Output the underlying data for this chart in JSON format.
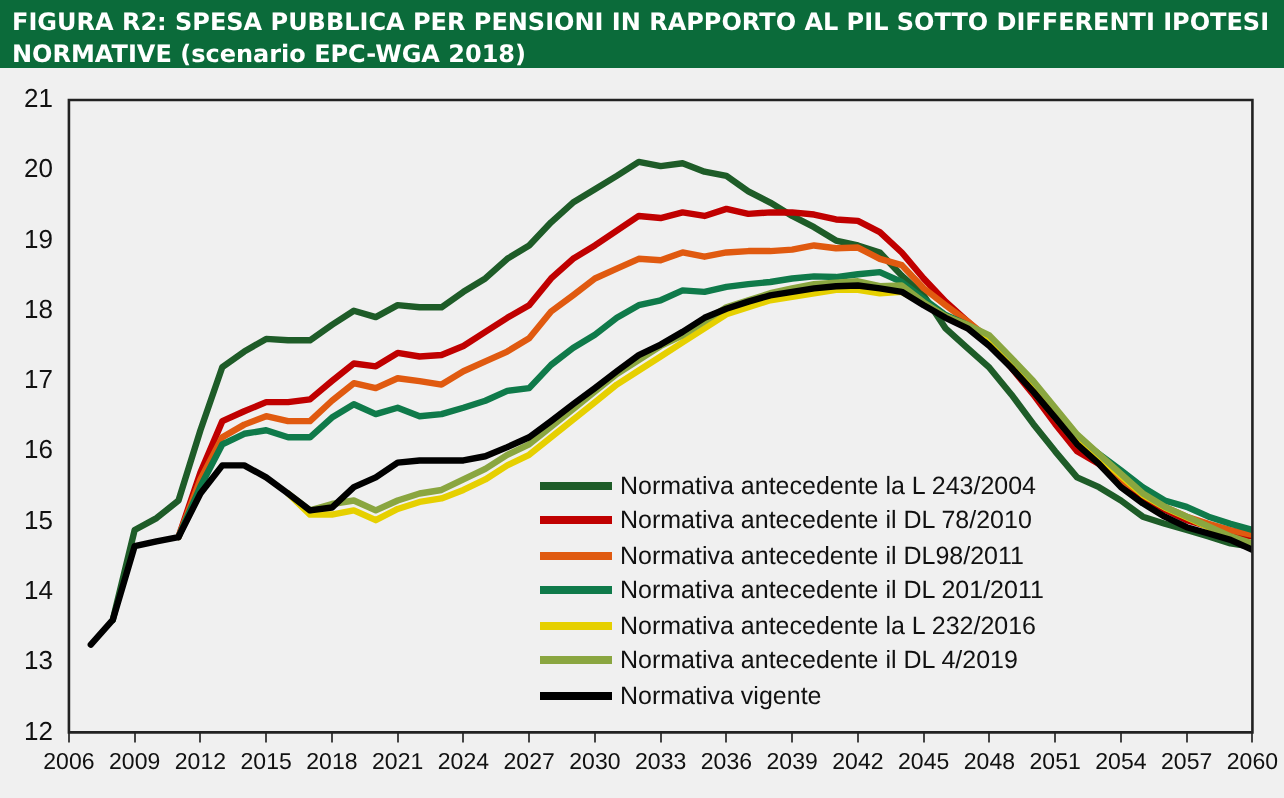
{
  "chart_data": {
    "type": "line",
    "title": "FIGURA R2: SPESA PUBBLICA PER PENSIONI IN RAPPORTO AL PIL SOTTO DIFFERENTI IPOTESI NORMATIVE (scenario EPC-WGA 2018)",
    "x": [
      2007,
      2008,
      2009,
      2010,
      2011,
      2012,
      2013,
      2014,
      2015,
      2016,
      2017,
      2018,
      2019,
      2020,
      2021,
      2022,
      2023,
      2024,
      2025,
      2026,
      2027,
      2028,
      2029,
      2030,
      2031,
      2032,
      2033,
      2034,
      2035,
      2036,
      2037,
      2038,
      2039,
      2040,
      2041,
      2042,
      2043,
      2044,
      2045,
      2046,
      2047,
      2048,
      2049,
      2050,
      2051,
      2052,
      2053,
      2054,
      2055,
      2056,
      2057,
      2058,
      2059,
      2060
    ],
    "series": [
      {
        "name": "Normativa antecedente la L 243/2004",
        "color": "#1e5c28",
        "values": [
          null,
          13.6,
          14.88,
          15.05,
          15.3,
          16.3,
          17.2,
          17.42,
          17.6,
          17.58,
          17.58,
          17.8,
          18.0,
          17.91,
          18.08,
          18.05,
          18.05,
          18.27,
          18.46,
          18.74,
          18.93,
          19.26,
          19.54,
          19.73,
          19.92,
          20.12,
          20.06,
          20.1,
          19.98,
          19.92,
          19.7,
          19.54,
          19.35,
          19.19,
          19.0,
          18.93,
          18.83,
          18.5,
          18.22,
          17.75,
          17.47,
          17.19,
          16.81,
          16.39,
          16.0,
          15.63,
          15.49,
          15.3,
          15.07,
          14.97,
          14.88,
          14.79,
          14.69,
          14.64
        ]
      },
      {
        "name": "Normativa antecedente il DL 78/2010",
        "color": "#c00000",
        "values": [
          null,
          null,
          null,
          null,
          14.78,
          15.7,
          16.43,
          16.57,
          16.7,
          16.7,
          16.74,
          17.0,
          17.25,
          17.21,
          17.4,
          17.35,
          17.37,
          17.5,
          17.7,
          17.9,
          18.08,
          18.46,
          18.74,
          18.93,
          19.14,
          19.35,
          19.32,
          19.4,
          19.35,
          19.45,
          19.38,
          19.4,
          19.4,
          19.37,
          19.3,
          19.28,
          19.12,
          18.83,
          18.46,
          18.13,
          17.85,
          17.56,
          17.19,
          16.81,
          16.39,
          16.0,
          15.82,
          15.58,
          15.35,
          15.17,
          15.02,
          14.93,
          14.83,
          14.79
        ]
      },
      {
        "name": "Normativa antecedente il DL98/2011",
        "color": "#e05a10",
        "values": [
          null,
          null,
          null,
          null,
          14.78,
          15.6,
          16.2,
          16.38,
          16.5,
          16.43,
          16.43,
          16.72,
          16.97,
          16.9,
          17.04,
          17.0,
          16.95,
          17.14,
          17.28,
          17.42,
          17.61,
          17.99,
          18.22,
          18.46,
          18.6,
          18.74,
          18.72,
          18.83,
          18.77,
          18.83,
          18.85,
          18.85,
          18.87,
          18.93,
          18.89,
          18.9,
          18.74,
          18.65,
          18.32,
          18.08,
          17.85,
          17.6,
          17.24,
          16.85,
          16.48,
          16.1,
          15.87,
          15.58,
          15.4,
          15.21,
          15.07,
          14.97,
          14.88,
          14.81
        ]
      },
      {
        "name": "Normativa antecedente  il DL 201/2011",
        "color": "#0f7a4a",
        "values": [
          null,
          null,
          null,
          null,
          14.78,
          15.5,
          16.1,
          16.25,
          16.3,
          16.2,
          16.2,
          16.48,
          16.67,
          16.53,
          16.62,
          16.5,
          16.53,
          16.62,
          16.72,
          16.86,
          16.9,
          17.23,
          17.47,
          17.66,
          17.9,
          18.08,
          18.15,
          18.29,
          18.27,
          18.34,
          18.38,
          18.41,
          18.46,
          18.49,
          18.48,
          18.52,
          18.55,
          18.41,
          18.17,
          17.94,
          17.8,
          17.6,
          17.3,
          16.9,
          16.53,
          16.2,
          15.96,
          15.73,
          15.49,
          15.3,
          15.21,
          15.07,
          14.97,
          14.88
        ]
      },
      {
        "name": "Normativa antecedente la L 232/2016",
        "color": "#e6d000",
        "values": [
          null,
          null,
          null,
          null,
          null,
          null,
          null,
          null,
          null,
          15.4,
          15.1,
          15.1,
          15.16,
          15.02,
          15.18,
          15.28,
          15.33,
          15.45,
          15.6,
          15.8,
          15.95,
          16.2,
          16.45,
          16.7,
          16.95,
          17.15,
          17.35,
          17.55,
          17.75,
          17.95,
          18.05,
          18.15,
          18.2,
          18.25,
          18.3,
          18.3,
          18.25,
          18.27,
          18.1,
          17.92,
          17.78,
          17.62,
          17.3,
          16.95,
          16.58,
          16.2,
          15.92,
          15.65,
          15.38,
          15.2,
          15.06,
          14.92,
          14.78,
          14.68
        ]
      },
      {
        "name": "Normativa antecedente il DL 4/2019",
        "color": "#8aa640",
        "values": [
          null,
          null,
          null,
          null,
          null,
          null,
          null,
          null,
          null,
          15.4,
          15.16,
          15.25,
          15.3,
          15.16,
          15.3,
          15.4,
          15.45,
          15.6,
          15.75,
          15.95,
          16.1,
          16.35,
          16.6,
          16.85,
          17.1,
          17.3,
          17.5,
          17.65,
          17.85,
          18.05,
          18.15,
          18.25,
          18.32,
          18.38,
          18.4,
          18.42,
          18.35,
          18.36,
          18.12,
          17.92,
          17.8,
          17.65,
          17.33,
          17.0,
          16.62,
          16.24,
          15.96,
          15.68,
          15.4,
          15.21,
          15.07,
          14.93,
          14.79,
          14.69
        ]
      },
      {
        "name": "Normativa vigente",
        "color": "#000000",
        "values": [
          13.25,
          13.6,
          14.65,
          14.72,
          14.78,
          15.4,
          15.8,
          15.8,
          15.63,
          15.4,
          15.16,
          15.2,
          15.49,
          15.63,
          15.84,
          15.87,
          15.87,
          15.87,
          15.93,
          16.06,
          16.2,
          16.43,
          16.67,
          16.9,
          17.14,
          17.37,
          17.52,
          17.7,
          17.9,
          18.03,
          18.13,
          18.22,
          18.27,
          18.32,
          18.35,
          18.36,
          18.32,
          18.27,
          18.08,
          17.9,
          17.75,
          17.5,
          17.19,
          16.85,
          16.48,
          16.1,
          15.82,
          15.49,
          15.26,
          15.07,
          14.92,
          14.83,
          14.74,
          14.6
        ]
      }
    ],
    "xlim": [
      2006,
      2060
    ],
    "xticks": [
      2006,
      2009,
      2012,
      2015,
      2018,
      2021,
      2024,
      2027,
      2030,
      2033,
      2036,
      2039,
      2042,
      2045,
      2048,
      2051,
      2054,
      2057,
      2060
    ],
    "ylim": [
      12,
      21
    ],
    "yticks": [
      12,
      13,
      14,
      15,
      16,
      17,
      18,
      19,
      20,
      21
    ],
    "grid": false,
    "legend": "bottom",
    "marker": "none",
    "line_style": "solid"
  }
}
